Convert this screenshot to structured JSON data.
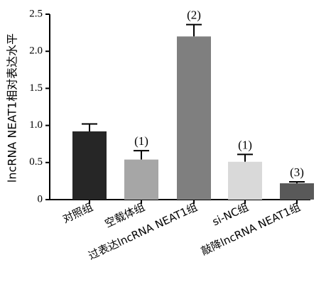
{
  "chart_data": {
    "type": "bar",
    "ylabel": "lncRNA NEAT1相对表达水平",
    "ylim": [
      0,
      2.5
    ],
    "yticks": [
      "0",
      "0.5",
      "1.0",
      "1.5",
      "2.0",
      "2.5"
    ],
    "categories": [
      "对照组",
      "空载体组",
      "过表达lncRNA NEAT1组",
      "si-NC组",
      "敲降lncRNA NEAT1组"
    ],
    "values": [
      0.92,
      0.54,
      2.2,
      0.51,
      0.22
    ],
    "errors": [
      0.1,
      0.12,
      0.16,
      0.1,
      0.02
    ],
    "annotations": [
      "",
      "(1)",
      "(2)",
      "(1)",
      "(3)"
    ],
    "bar_colors": [
      "#262626",
      "#a6a6a6",
      "#7f7f7f",
      "#d9d9d9",
      "#595959"
    ],
    "grid": false,
    "legend": "none"
  }
}
